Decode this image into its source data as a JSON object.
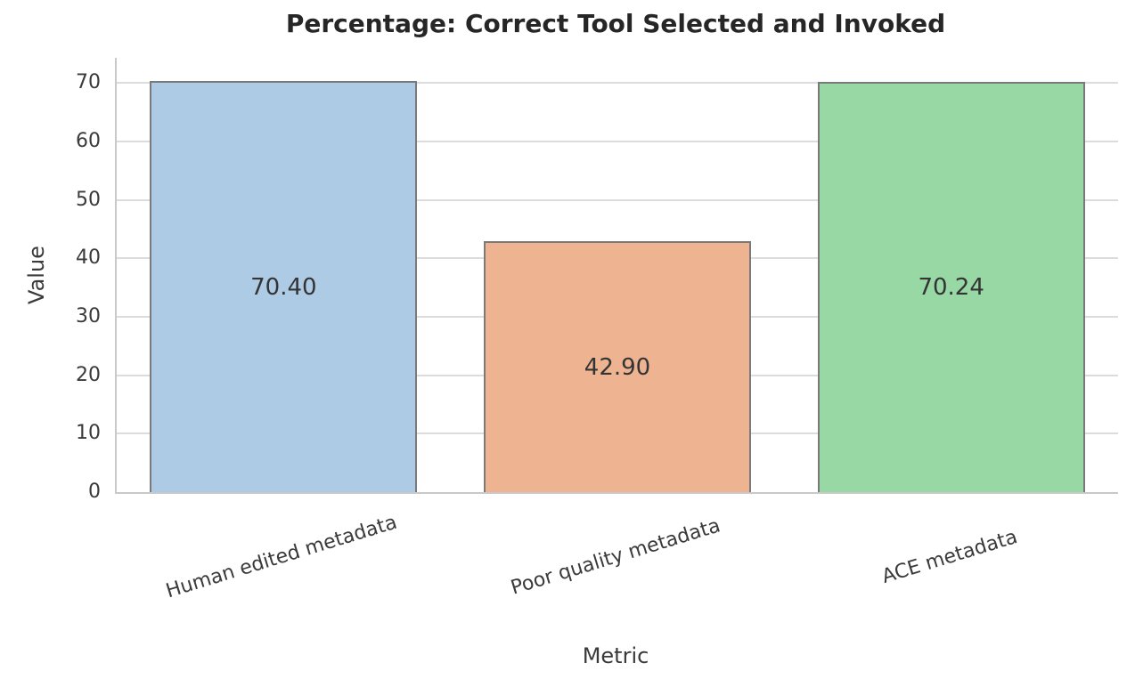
{
  "chart_data": {
    "type": "bar",
    "title": "Percentage: Correct Tool Selected and Invoked",
    "xlabel": "Metric",
    "ylabel": "Value",
    "categories": [
      "Human edited metadata",
      "Poor quality metadata",
      "ACE metadata"
    ],
    "values": [
      70.4,
      42.9,
      70.24
    ],
    "value_labels": [
      "70.40",
      "42.90",
      "70.24"
    ],
    "bar_colors": [
      "#aecbe6",
      "#eeb491",
      "#97d8a4"
    ],
    "bar_edge_color": "#7a7a7a",
    "ylim": [
      0,
      74.3
    ],
    "yticks": [
      0,
      10,
      20,
      30,
      40,
      50,
      60,
      70
    ],
    "grid": "horizontal",
    "grid_color": "#dcdcdc",
    "spine_color": "#c9c9c9",
    "text_color": "#3a3a3a",
    "title_color": "#262626",
    "background": "#ffffff",
    "x_tick_rotation_deg": 17,
    "legend": null
  }
}
